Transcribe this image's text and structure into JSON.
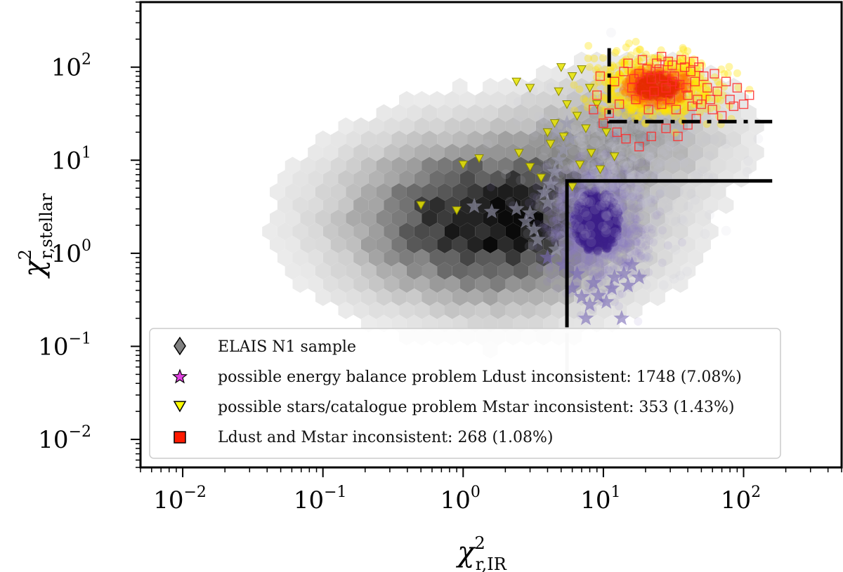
{
  "chart_data": {
    "type": "scatter",
    "xscale": "log",
    "yscale": "log",
    "xlim": [
      0.005,
      500
    ],
    "ylim": [
      0.005,
      500
    ],
    "xlabel": {
      "base": "χ",
      "sup": "2",
      "sub": "r,IR"
    },
    "ylabel": {
      "base": "χ",
      "sup": "2",
      "sub": "r,stellar"
    },
    "xticks": [
      {
        "value": 0.01,
        "base": "10",
        "exp": "−2"
      },
      {
        "value": 0.1,
        "base": "10",
        "exp": "−1"
      },
      {
        "value": 1,
        "base": "10",
        "exp": "0"
      },
      {
        "value": 10,
        "base": "10",
        "exp": "1"
      },
      {
        "value": 100,
        "base": "10",
        "exp": "2"
      }
    ],
    "yticks": [
      {
        "value": 0.01,
        "base": "10",
        "exp": "−2"
      },
      {
        "value": 0.1,
        "base": "10",
        "exp": "−1"
      },
      {
        "value": 1,
        "base": "10",
        "exp": "0"
      },
      {
        "value": 10,
        "base": "10",
        "exp": "1"
      },
      {
        "value": 100,
        "base": "10",
        "exp": "2"
      }
    ],
    "hexbin_center": {
      "x": 1.6,
      "y": 2.3
    },
    "thresholds": {
      "ldust_solid": {
        "x_start": 5.5,
        "y_start": 6.0,
        "x_end": 160,
        "y_bottom": 0.16
      },
      "mstar_dashed": {
        "x_start": 11,
        "y_start": 26,
        "x_end": 160,
        "y_top": 160
      }
    },
    "series": [
      {
        "name": "ELAIS N1 sample",
        "marker": "diamond",
        "color": "#777777"
      },
      {
        "name": "possible energy balance problem Ldust inconsistent: 1748 (7.08%)",
        "marker": "star",
        "color": "#e040e0",
        "count": 1748,
        "percent": 7.08,
        "plot_color": "#4b2a9a"
      },
      {
        "name": "possible stars/catalogue problem Mstar inconsistent: 353 (1.43%)",
        "marker": "triangle-down",
        "color": "#ffff00",
        "count": 353,
        "percent": 1.43
      },
      {
        "name": "Ldust and Mstar inconsistent: 268 (1.08%)",
        "marker": "square",
        "color": "#ff1a00",
        "count": 268,
        "percent": 1.08
      }
    ],
    "yellow_points": [
      [
        0.5,
        3.3
      ],
      [
        0.9,
        2.9
      ],
      [
        1.3,
        10.5
      ],
      [
        1.0,
        9.0
      ],
      [
        2.5,
        12
      ],
      [
        3.0,
        8.5
      ],
      [
        3.6,
        6.5
      ],
      [
        4.0,
        20
      ],
      [
        4.5,
        25
      ],
      [
        4.2,
        15
      ],
      [
        5.2,
        18
      ],
      [
        6.0,
        5.2
      ],
      [
        6.5,
        30
      ],
      [
        5.5,
        40
      ],
      [
        6.8,
        9.0
      ],
      [
        7.5,
        22
      ],
      [
        8.2,
        12
      ],
      [
        9.0,
        40
      ],
      [
        9.5,
        8.0
      ],
      [
        10.5,
        20
      ],
      [
        12,
        11
      ],
      [
        3.0,
        60
      ],
      [
        5.0,
        100
      ],
      [
        6.0,
        80
      ],
      [
        2.4,
        70
      ],
      [
        8,
        60
      ],
      [
        7,
        95
      ],
      [
        4.8,
        55
      ]
    ],
    "star_points": [
      [
        1.2,
        3.2
      ],
      [
        1.6,
        2.8
      ],
      [
        2.4,
        3.0
      ],
      [
        2.8,
        2.2
      ],
      [
        3.2,
        1.8
      ],
      [
        3.4,
        1.4
      ],
      [
        3.0,
        2.7
      ],
      [
        3.8,
        4.5
      ],
      [
        4.2,
        5.5
      ],
      [
        4.0,
        3.5
      ],
      [
        4.5,
        7.5
      ],
      [
        4.8,
        10
      ],
      [
        5.2,
        13
      ],
      [
        5.8,
        17
      ],
      [
        4.6,
        20
      ],
      [
        5.5,
        25
      ],
      [
        4.0,
        0.9
      ],
      [
        4.6,
        1.1
      ],
      [
        6.0,
        0.42
      ],
      [
        7.0,
        0.34
      ],
      [
        8.0,
        0.28
      ],
      [
        9.2,
        0.35
      ],
      [
        10.5,
        0.3
      ],
      [
        11.5,
        0.42
      ],
      [
        7.5,
        0.2
      ],
      [
        13.5,
        0.2
      ],
      [
        12,
        0.55
      ],
      [
        8.5,
        0.48
      ],
      [
        6.5,
        0.6
      ],
      [
        15,
        0.45
      ],
      [
        14,
        0.6
      ],
      [
        16,
        0.75
      ],
      [
        18,
        0.55
      ],
      [
        5.2,
        0.75
      ]
    ],
    "square_points": [
      [
        12,
        70
      ],
      [
        14,
        90
      ],
      [
        16,
        60
      ],
      [
        18,
        85
      ],
      [
        20,
        50
      ],
      [
        22,
        75
      ],
      [
        25,
        95
      ],
      [
        28,
        60
      ],
      [
        30,
        45
      ],
      [
        32,
        80
      ],
      [
        35,
        65
      ],
      [
        38,
        100
      ],
      [
        40,
        50
      ],
      [
        45,
        70
      ],
      [
        50,
        40
      ],
      [
        55,
        60
      ],
      [
        60,
        35
      ],
      [
        65,
        55
      ],
      [
        70,
        30
      ],
      [
        80,
        45
      ],
      [
        90,
        60
      ],
      [
        100,
        40
      ],
      [
        110,
        50
      ],
      [
        13,
        40
      ],
      [
        15,
        110
      ],
      [
        17,
        45
      ],
      [
        19,
        120
      ],
      [
        21,
        35
      ],
      [
        24,
        110
      ],
      [
        26,
        40
      ],
      [
        29,
        115
      ],
      [
        33,
        35
      ],
      [
        36,
        120
      ],
      [
        42,
        90
      ],
      [
        48,
        100
      ],
      [
        52,
        80
      ],
      [
        58,
        45
      ],
      [
        62,
        85
      ],
      [
        75,
        70
      ],
      [
        85,
        38
      ],
      [
        9,
        50
      ],
      [
        8.5,
        35
      ],
      [
        10,
        25
      ],
      [
        11,
        32
      ],
      [
        9.5,
        80
      ],
      [
        12.5,
        20
      ],
      [
        14.5,
        17
      ],
      [
        18,
        14
      ],
      [
        22,
        18
      ],
      [
        28,
        22
      ],
      [
        34,
        18
      ],
      [
        40,
        24
      ],
      [
        46,
        28
      ],
      [
        26,
        130
      ],
      [
        31,
        105
      ],
      [
        44,
        115
      ],
      [
        23,
        55
      ],
      [
        27,
        80
      ],
      [
        39,
        60
      ],
      [
        47,
        45
      ],
      [
        16.5,
        75
      ],
      [
        20.5,
        95
      ],
      [
        31,
        70
      ],
      [
        43,
        38
      ]
    ]
  },
  "legend": {
    "items": [
      {
        "label": "ELAIS N1 sample"
      },
      {
        "label": "possible energy balance problem Ldust inconsistent: 1748 (7.08%)"
      },
      {
        "label": "possible stars/catalogue problem Mstar inconsistent: 353 (1.43%)"
      },
      {
        "label": "Ldust and Mstar inconsistent: 268 (1.08%)"
      }
    ]
  }
}
